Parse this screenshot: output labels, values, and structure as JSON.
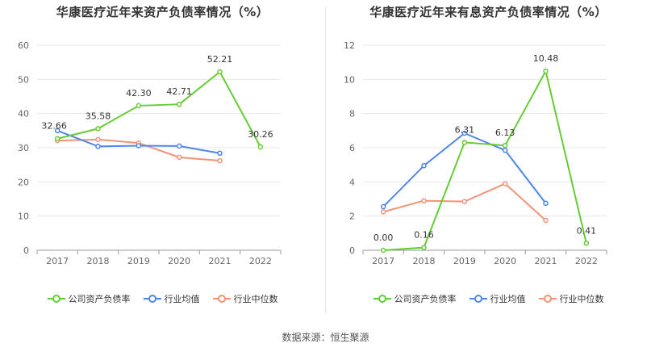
{
  "source_label": "数据来源：恒生聚源",
  "colors": {
    "company": "#66cc33",
    "industry_avg": "#4f86e8",
    "industry_median": "#f29377"
  },
  "chart_data": [
    {
      "type": "line",
      "title": "华康医疗近年来资产负债率情况（%）",
      "categories": [
        "2017",
        "2018",
        "2019",
        "2020",
        "2021",
        "2022"
      ],
      "ylim": [
        0,
        60
      ],
      "yticks": [
        0,
        10,
        20,
        30,
        40,
        50,
        60
      ],
      "series": [
        {
          "name": "公司资产负债率",
          "key": "company",
          "values": [
            32.66,
            35.58,
            42.3,
            42.71,
            52.21,
            30.26
          ],
          "labels": [
            "32.66",
            "35.58",
            "42.30",
            "42.71",
            "52.21",
            "30.26"
          ]
        },
        {
          "name": "行业均值",
          "key": "industry_avg",
          "values": [
            35.0,
            30.4,
            30.6,
            30.5,
            28.4,
            null
          ]
        },
        {
          "name": "行业中位数",
          "key": "industry_median",
          "values": [
            32.1,
            32.4,
            31.4,
            27.2,
            26.2,
            null
          ]
        }
      ]
    },
    {
      "type": "line",
      "title": "华康医疗近年来有息资产负债率情况（%）",
      "categories": [
        "2017",
        "2018",
        "2019",
        "2020",
        "2021",
        "2022"
      ],
      "ylim": [
        0,
        12
      ],
      "yticks": [
        0,
        2,
        4,
        6,
        8,
        10,
        12
      ],
      "series": [
        {
          "name": "公司资产负债率",
          "key": "company",
          "values": [
            0.0,
            0.16,
            6.31,
            6.13,
            10.48,
            0.41
          ],
          "labels": [
            "0.00",
            "0.16",
            "6.31",
            "6.13",
            "10.48",
            "0.41"
          ]
        },
        {
          "name": "行业均值",
          "key": "industry_avg",
          "values": [
            2.55,
            4.95,
            6.85,
            5.85,
            2.75,
            null
          ]
        },
        {
          "name": "行业中位数",
          "key": "industry_median",
          "values": [
            2.25,
            2.9,
            2.85,
            3.9,
            1.75,
            null
          ]
        }
      ]
    }
  ]
}
